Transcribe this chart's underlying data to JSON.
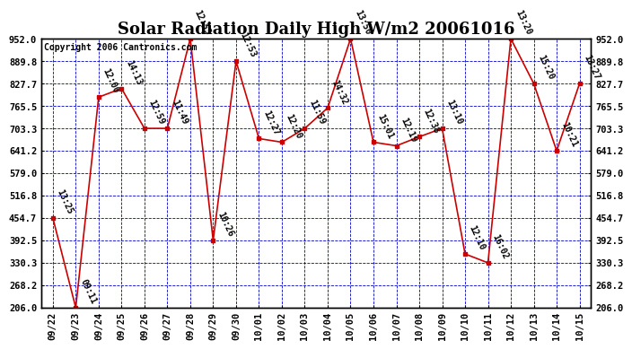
{
  "title": "Solar Radiation Daily High W/m2 20061016",
  "copyright": "Copyright 2006 Cantronics.com",
  "dates": [
    "09/22",
    "09/23",
    "09/24",
    "09/25",
    "09/26",
    "09/27",
    "09/28",
    "09/29",
    "09/30",
    "10/01",
    "10/02",
    "10/03",
    "10/04",
    "10/05",
    "10/06",
    "10/07",
    "10/08",
    "10/09",
    "10/10",
    "10/11",
    "10/12",
    "10/13",
    "10/14",
    "10/15"
  ],
  "values": [
    454.7,
    206.0,
    790.0,
    814.0,
    703.3,
    703.3,
    952.0,
    392.5,
    889.8,
    675.0,
    665.0,
    703.3,
    760.0,
    952.0,
    665.0,
    655.0,
    680.0,
    703.3,
    355.0,
    330.3,
    952.0,
    827.7,
    641.2,
    827.7
  ],
  "labels": [
    "13:25",
    "09:11",
    "12:00",
    "14:13",
    "12:59",
    "11:49",
    "12:53",
    "10:26",
    "12:53",
    "12:27",
    "12:20",
    "11:59",
    "14:32",
    "13:50",
    "15:01",
    "12:19",
    "12:38",
    "13:10",
    "12:10",
    "16:02",
    "13:20",
    "15:20",
    "10:21",
    "13:27"
  ],
  "ylim_min": 206.0,
  "ylim_max": 952.0,
  "yticks": [
    206.0,
    268.2,
    330.3,
    392.5,
    454.7,
    516.8,
    579.0,
    641.2,
    703.3,
    765.5,
    827.7,
    889.8,
    952.0
  ],
  "line_color": "#cc0000",
  "marker_color": "#cc0000",
  "bg_color": "#ffffff",
  "grid_color": "#0000cc",
  "title_fontsize": 13,
  "tick_fontsize": 7.5,
  "label_fontsize": 7,
  "copyright_fontsize": 7
}
